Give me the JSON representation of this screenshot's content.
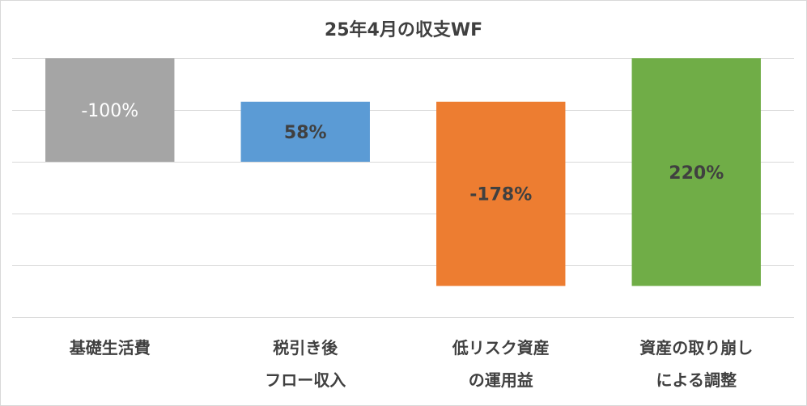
{
  "chart_data": {
    "type": "bar",
    "subtype": "waterfall",
    "title": "25年4月の収支WF",
    "categories": [
      "基礎生活費",
      "税引き後\nフロー収入",
      "低リスク資産\nの運用益",
      "資産の取り崩し\nによる調整"
    ],
    "values": [
      -100,
      58,
      -178,
      220
    ],
    "data_labels": [
      "-100%",
      "58%",
      "-178%",
      "220%"
    ],
    "ylim": [
      -250,
      0
    ],
    "grid": true,
    "legend": "none",
    "colors": [
      "#a5a5a5",
      "#5b9bd5",
      "#ed7d31",
      "#70ad47"
    ],
    "label_colors": [
      "#ffffff",
      "#404040",
      "#404040",
      "#404040"
    ]
  }
}
